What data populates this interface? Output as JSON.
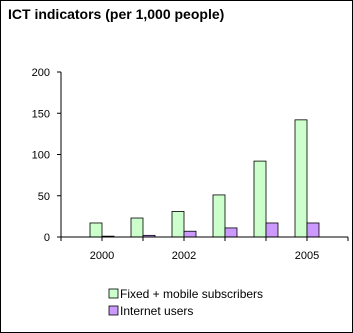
{
  "chart_data": {
    "type": "bar",
    "title": "ICT indicators (per 1,000 people)",
    "xlabel": "",
    "ylabel": "",
    "x": [
      2000,
      2001,
      2002,
      2003,
      2004,
      2005
    ],
    "x_tick_labels": [
      "2000",
      "",
      "2002",
      "",
      "",
      "2005"
    ],
    "ylim": [
      0,
      200
    ],
    "y_ticks": [
      0,
      50,
      100,
      150,
      200
    ],
    "grid": false,
    "legend_position": "bottom",
    "series": [
      {
        "name": "Fixed + mobile subscribers",
        "color": "#ccffcc",
        "values": [
          17,
          23,
          31,
          51,
          92,
          142
        ]
      },
      {
        "name": "Internet users",
        "color": "#cc99ff",
        "values": [
          1,
          2,
          7,
          11,
          17,
          17
        ]
      }
    ]
  }
}
